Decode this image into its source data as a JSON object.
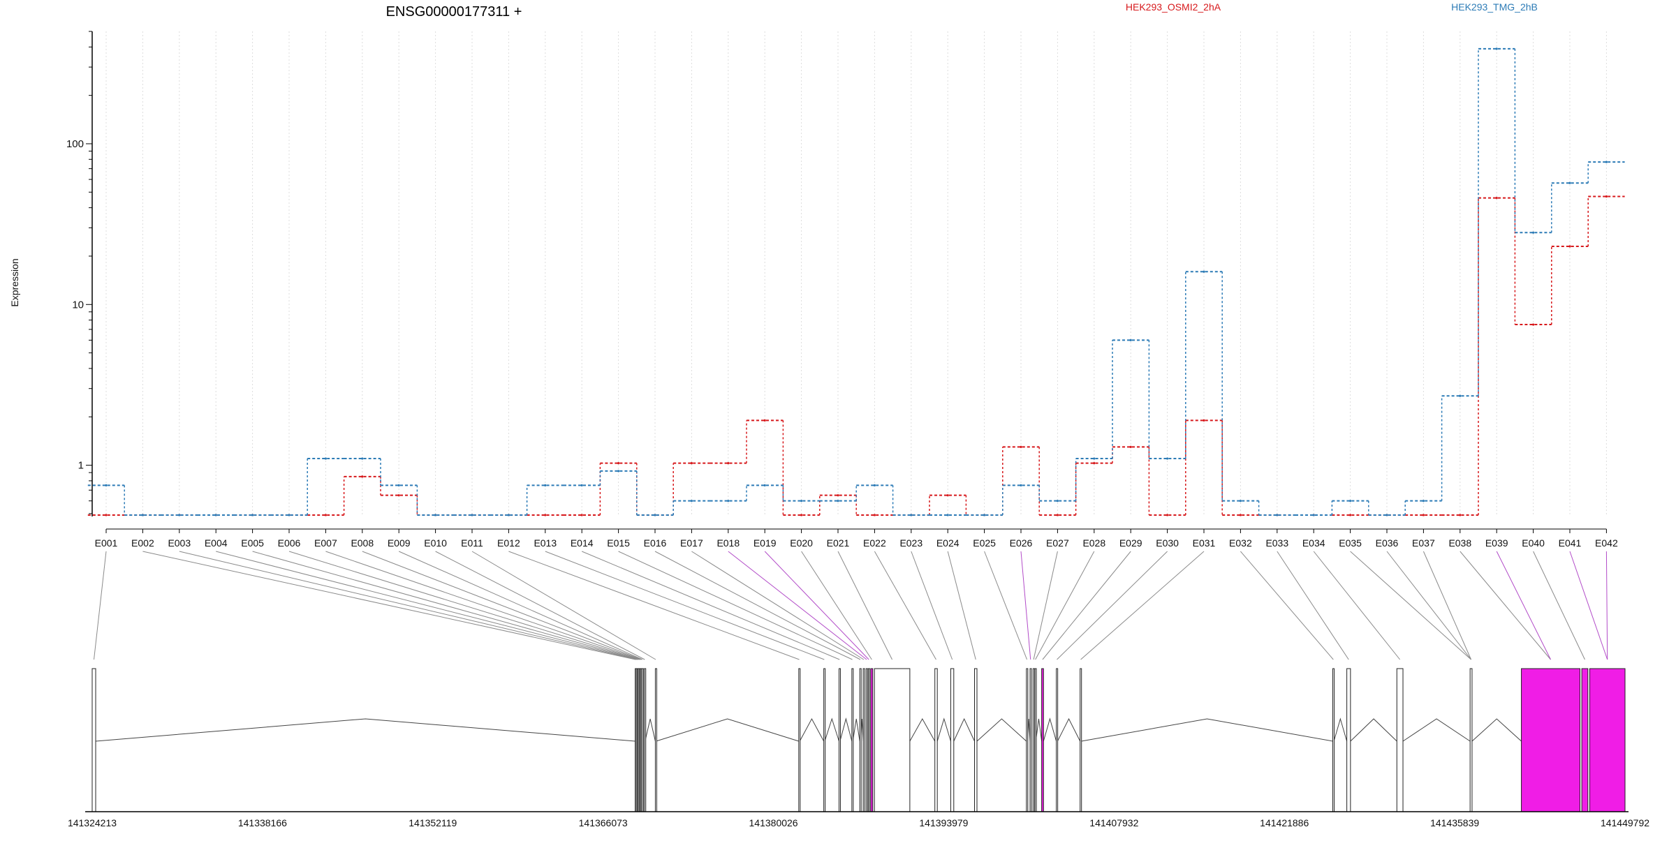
{
  "chart_data": {
    "type": "line",
    "title": "ENSG00000177311 +",
    "ylabel": "Expression",
    "y_scale": "log",
    "ylim": [
      0.48,
      500
    ],
    "y_ticks": [
      1,
      10,
      100
    ],
    "y_tick_labels": [
      "1",
      "10",
      "100"
    ],
    "grid": "vertical dotted at each exon",
    "legend_placement": "top",
    "categories": [
      "E001",
      "E002",
      "E003",
      "E004",
      "E005",
      "E006",
      "E007",
      "E008",
      "E009",
      "E010",
      "E011",
      "E012",
      "E013",
      "E014",
      "E015",
      "E016",
      "E017",
      "E018",
      "E019",
      "E020",
      "E021",
      "E022",
      "E023",
      "E024",
      "E025",
      "E026",
      "E027",
      "E028",
      "E029",
      "E030",
      "E031",
      "E032",
      "E033",
      "E034",
      "E035",
      "E036",
      "E037",
      "E038",
      "E039",
      "E040",
      "E041",
      "E042"
    ],
    "series": [
      {
        "name": "HEK293_OSMI2_2hA",
        "color": "#d7191c",
        "values": [
          0.49,
          0.49,
          0.49,
          0.49,
          0.49,
          0.49,
          0.49,
          0.85,
          0.65,
          0.49,
          0.49,
          0.49,
          0.49,
          0.49,
          1.03,
          0.49,
          1.03,
          1.03,
          1.9,
          0.49,
          0.65,
          0.49,
          0.49,
          0.65,
          0.49,
          1.3,
          0.49,
          1.03,
          1.3,
          0.49,
          1.9,
          0.49,
          0.49,
          0.49,
          0.49,
          0.49,
          0.49,
          0.49,
          46,
          7.5,
          23,
          47
        ]
      },
      {
        "name": "HEK293_TMG_2hB",
        "color": "#2c7bb6",
        "values": [
          0.75,
          0.49,
          0.49,
          0.49,
          0.49,
          0.49,
          1.1,
          1.1,
          0.75,
          0.49,
          0.49,
          0.49,
          0.75,
          0.75,
          0.92,
          0.49,
          0.6,
          0.6,
          0.75,
          0.6,
          0.6,
          0.75,
          0.49,
          0.49,
          0.49,
          0.75,
          0.6,
          1.1,
          6,
          1.1,
          16,
          0.6,
          0.49,
          0.49,
          0.6,
          0.49,
          0.6,
          2.7,
          390,
          28,
          57,
          77
        ]
      }
    ],
    "genomic_axis": {
      "tick_labels": [
        "141324213",
        "141338166",
        "141352119",
        "141366073",
        "141380026",
        "141393979",
        "141407932",
        "141421886",
        "141435839",
        "141449792"
      ],
      "start": 141324213,
      "end": 141449792
    },
    "exon_colors": {
      "default": "#ffffff",
      "highlight": "#f01de6"
    },
    "highlighted_exons": [
      "E018",
      "E019",
      "E026",
      "E039",
      "E041",
      "E042"
    ]
  }
}
